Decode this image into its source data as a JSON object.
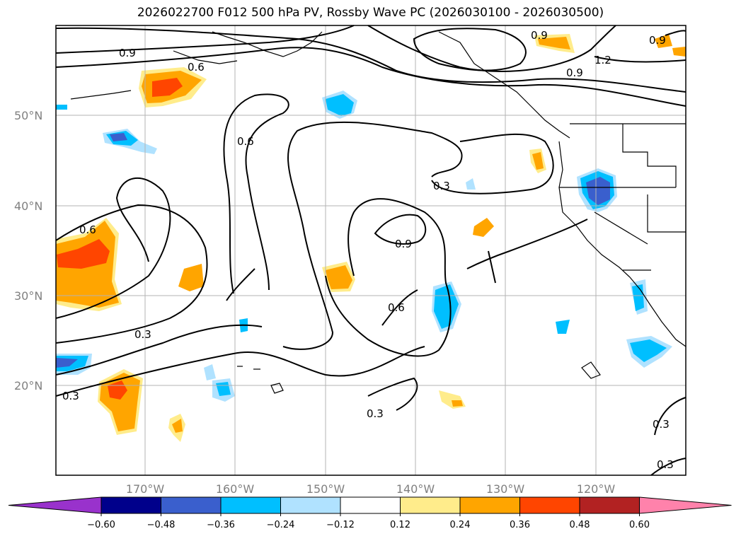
{
  "title": "2026022700 F012 500 hPa PV, Rossby Wave PC (2026030100 - 2026030500)",
  "lat_labels": [
    "50°N",
    "40°N",
    "30°N",
    "20°N"
  ],
  "lon_labels": [
    "170°W",
    "160°W",
    "150°W",
    "140°W",
    "130°W",
    "120°W"
  ],
  "contour_labels": [
    "0.9",
    "0.6",
    "0.6",
    "0.6",
    "0.3",
    "0.9",
    "0.6",
    "0.3",
    "0.3",
    "0.3",
    "0.9",
    "0.9",
    "1.2",
    "0.9",
    "0.3",
    "0.3"
  ],
  "colorbar": {
    "ticks": [
      "−0.60",
      "−0.48",
      "−0.36",
      "−0.24",
      "−0.12",
      "0.12",
      "0.24",
      "0.36",
      "0.48",
      "0.60"
    ],
    "colors": [
      "#9932cc",
      "#00008b",
      "#3a5fcd",
      "#00bfff",
      "#b0e2ff",
      "#ffffff",
      "#ffec8b",
      "#ffa500",
      "#ff4500",
      "#b22222",
      "#ff82ab"
    ]
  }
}
